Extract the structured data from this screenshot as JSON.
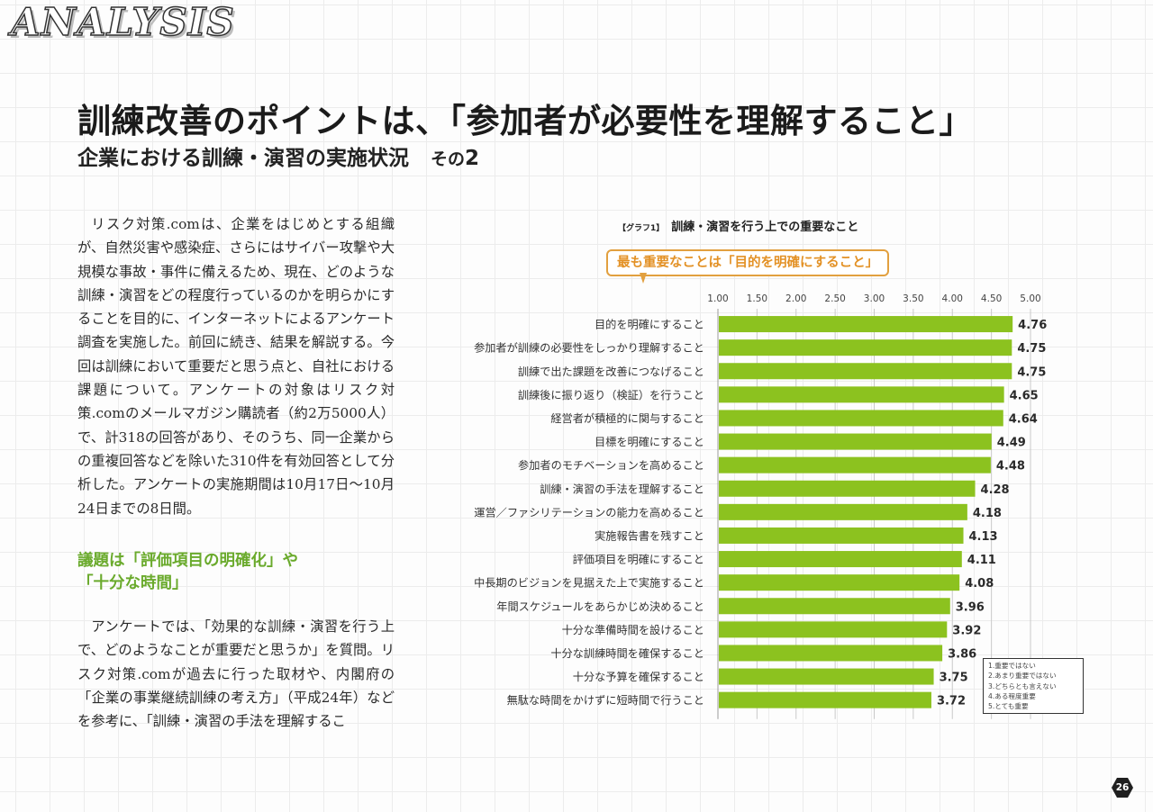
{
  "section_label": "ANALYSIS",
  "headline": "訓練改善のポイントは、「参加者が必要性を理解すること」",
  "subhead": {
    "main": "企業における訓練・演習の実施状況",
    "part_prefix": "その",
    "part_number": "2"
  },
  "body": {
    "paragraph1": "リスク対策.comは、企業をはじめとする組織が、自然災害や感染症、さらにはサイバー攻撃や大規模な事故・事件に備えるため、現在、どのような訓練・演習をどの程度行っているのかを明らかにすることを目的に、インターネットによるアンケート調査を実施した。前回に続き、結果を解説する。今回は訓練において重要だと思う点と、自社における課題について。アンケートの対象はリスク対策.comのメールマガジン購読者（約2万5000人）で、計318の回答があり、そのうち、同一企業からの重複回答などを除いた310件を有効回答として分析した。アンケートの実施期間は10月17日～10月24日までの8日間。",
    "section_heading_line1": "議題は「評価項目の明確化」や",
    "section_heading_line2": "「十分な時間」",
    "paragraph2": "アンケートでは、「効果的な訓練・演習を行う上で、どのようなことが重要だと思うか」を質問。リスク対策.comが過去に行った取材や、内閣府の「企業の事業継続訓練の考え方」（平成24年）などを参考に、「訓練・演習の手法を理解するこ"
  },
  "graph": {
    "tag": "【グラフ1】",
    "title": "訓練・演習を行う上での重要なこと",
    "callout": "最も重要なことは「目的を明確にすること」"
  },
  "chart_data": {
    "type": "bar",
    "orientation": "horizontal",
    "title": "訓練・演習を行う上での重要なこと",
    "xlabel": "",
    "ylabel": "",
    "xlim": [
      1.0,
      5.0
    ],
    "x_ticks": [
      "1.00",
      "1.50",
      "2.00",
      "2.50",
      "3.00",
      "3.50",
      "4.00",
      "4.50",
      "5.00"
    ],
    "x_tick_values": [
      1.0,
      1.5,
      2.0,
      2.5,
      3.0,
      3.5,
      4.0,
      4.5,
      5.0
    ],
    "grid": true,
    "bar_color": "#8cc21f",
    "categories": [
      "目的を明確にすること",
      "参加者が訓練の必要性をしっかり理解すること",
      "訓練で出た課題を改善につなげること",
      "訓練後に振り返り（検証）を行うこと",
      "経営者が積極的に関与すること",
      "目標を明確にすること",
      "参加者のモチベーションを高めること",
      "訓練・演習の手法を理解すること",
      "運営／ファシリテーションの能力を高めること",
      "実施報告書を残すこと",
      "評価項目を明確にすること",
      "中長期のビジョンを見据えた上で実施すること",
      "年間スケジュールをあらかじめ決めること",
      "十分な準備時間を設けること",
      "十分な訓練時間を確保すること",
      "十分な予算を確保すること",
      "無駄な時間をかけずに短時間で行うこと"
    ],
    "values": [
      4.76,
      4.75,
      4.75,
      4.65,
      4.64,
      4.49,
      4.48,
      4.28,
      4.18,
      4.13,
      4.11,
      4.08,
      3.96,
      3.92,
      3.86,
      3.75,
      3.72
    ],
    "data_labels": [
      "4.76",
      "4.75",
      "4.75",
      "4.65",
      "4.64",
      "4.49",
      "4.48",
      "4.28",
      "4.18",
      "4.13",
      "4.11",
      "4.08",
      "3.96",
      "3.92",
      "3.86",
      "3.75",
      "3.72"
    ],
    "legend": {
      "placement": "bottom-right",
      "entries": [
        "1.重要ではない",
        "2.あまり重要ではない",
        "3.どちらとも言えない",
        "4.ある程度重要",
        "5.とても重要"
      ]
    }
  },
  "page_number": "26"
}
